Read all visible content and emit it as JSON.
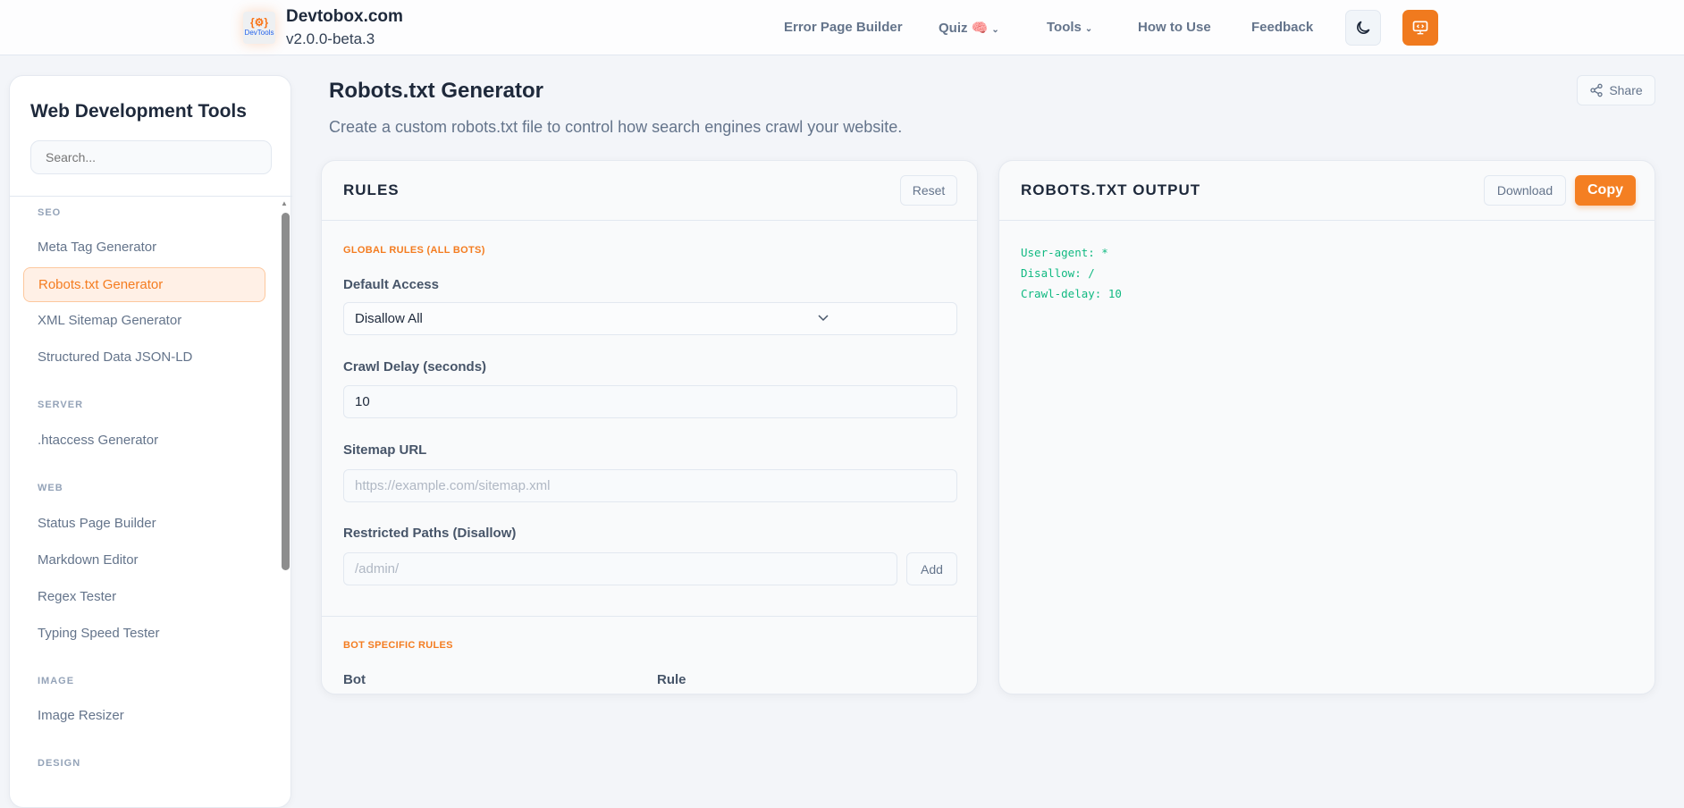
{
  "header": {
    "brand": "Devtobox.com",
    "version": "v2.0.0-beta.3",
    "logo_text": "DevTools",
    "nav": [
      "Error Page Builder",
      "Quiz 🧠",
      "Tools",
      "How to Use",
      "Feedback"
    ],
    "theme_icon": "moon-icon",
    "monitor_icon": "monitor-code-icon",
    "accent": "#f47f22"
  },
  "sidebar": {
    "title": "Web Development Tools",
    "search_placeholder": "Search...",
    "sections": [
      {
        "label": "SEO",
        "items": [
          "Meta Tag Generator",
          "Robots.txt Generator",
          "XML Sitemap Generator",
          "Structured Data JSON-LD"
        ]
      },
      {
        "label": "SERVER",
        "items": [
          ".htaccess Generator"
        ]
      },
      {
        "label": "WEB",
        "items": [
          "Status Page Builder",
          "Markdown Editor",
          "Regex Tester",
          "Typing Speed Tester"
        ]
      },
      {
        "label": "IMAGE",
        "items": [
          "Image Resizer"
        ]
      },
      {
        "label": "DESIGN",
        "items": []
      }
    ],
    "active": "Robots.txt Generator"
  },
  "page": {
    "title": "Robots.txt Generator",
    "subtitle": "Create a custom robots.txt file to control how search engines crawl your website.",
    "share": "Share"
  },
  "rules": {
    "title": "RULES",
    "reset": "Reset",
    "global_label": "GLOBAL RULES (ALL BOTS)",
    "default_access_label": "Default Access",
    "default_access_value": "Disallow All",
    "crawl_delay_label": "Crawl Delay (seconds)",
    "crawl_delay_value": "10",
    "sitemap_label": "Sitemap URL",
    "sitemap_placeholder": "https://example.com/sitemap.xml",
    "restricted_label": "Restricted Paths (Disallow)",
    "restricted_placeholder": "/admin/",
    "add": "Add",
    "bot_label": "BOT SPECIFIC RULES",
    "col_bot": "Bot",
    "col_rule": "Rule"
  },
  "output": {
    "title": "ROBOTS.TXT OUTPUT",
    "download": "Download",
    "copy": "Copy",
    "lines": [
      "User-agent: *",
      "Disallow: /",
      "Crawl-delay: 10"
    ]
  }
}
